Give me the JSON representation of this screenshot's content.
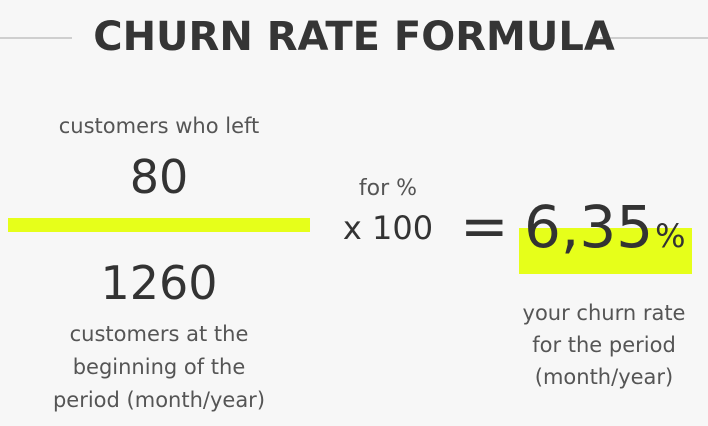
{
  "title": "CHURN RATE FORMULA",
  "numerator": {
    "label": "customers who left",
    "value": "80"
  },
  "denominator": {
    "value": "1260",
    "label_lines": [
      "customers at the",
      "beginning of the",
      "period (month/year)"
    ]
  },
  "multiplier": {
    "note": "for %",
    "text": "x 100"
  },
  "equals": "=",
  "result": {
    "value": "6,35",
    "unit": "%",
    "caption_lines": [
      "your churn rate",
      "for the period",
      "(month/year)"
    ]
  },
  "colors": {
    "highlight": "#e6ff1a",
    "text": "#333333",
    "background": "#f7f7f7",
    "rule": "#cfcfcf"
  }
}
